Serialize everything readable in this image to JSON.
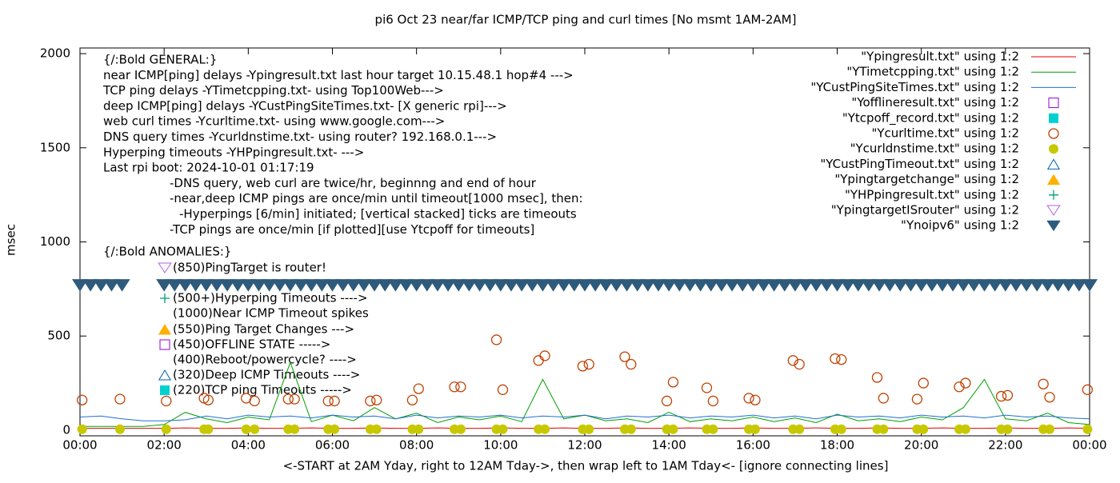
{
  "chart_data": {
    "type": "line",
    "title": "pi6 Oct 23  near/far ICMP/TCP ping and curl times [No msmt 1AM-2AM]",
    "xlabel": "<-START at 2AM Yday, right to 12AM Tday->, then wrap left to 1AM Tday<- [ignore connecting lines]",
    "ylabel": "msec",
    "xlim": [
      0,
      24
    ],
    "ylim": [
      -30,
      2030
    ],
    "xticks": [
      {
        "value": 0,
        "label": "00:00"
      },
      {
        "value": 2,
        "label": "02:00"
      },
      {
        "value": 4,
        "label": "04:00"
      },
      {
        "value": 6,
        "label": "06:00"
      },
      {
        "value": 8,
        "label": "08:00"
      },
      {
        "value": 10,
        "label": "10:00"
      },
      {
        "value": 12,
        "label": "12:00"
      },
      {
        "value": 14,
        "label": "14:00"
      },
      {
        "value": 16,
        "label": "16:00"
      },
      {
        "value": 18,
        "label": "18:00"
      },
      {
        "value": 20,
        "label": "20:00"
      },
      {
        "value": 22,
        "label": "22:00"
      },
      {
        "value": 24,
        "label": "00:00"
      }
    ],
    "yticks": [
      0,
      500,
      1000,
      1500,
      2000
    ],
    "notes": [
      "{/:Bold GENERAL:}",
      "near ICMP[ping] delays -Ypingresult.txt last hour target 10.15.48.1 hop#4 --->",
      "TCP ping delays -YTimetcpping.txt- using Top100Web--->",
      "deep ICMP[ping] delays -YCustPingSiteTimes.txt- [X generic rpi]--->",
      "web curl times -Ycurltime.txt- using www.google.com--->",
      "DNS query times -Ycurldnstime.txt- using router? 192.168.0.1--->",
      "Hyperping timeouts -YHPpingresult.txt- --->",
      "Last rpi boot: 2024-10-01 01:17:19",
      "-DNS query, web curl are twice/hr, beginnng and end of hour",
      "-near,deep ICMP pings are once/min until timeout[1000 msec], then:",
      "-Hyperpings [6/min] initiated; [vertical stacked] ticks are timeouts",
      "-TCP pings are once/min [if plotted][use Ytcpoff for timeouts]",
      "{/:Bold ANOMALIES:}"
    ],
    "anomalies": [
      "(850)PingTarget is router!",
      "(500+)Hyperping Timeouts ---->",
      "(1000)Near ICMP Timeout spikes",
      "(550)Ping Target Changes --->",
      "(450)OFFLINE STATE ----->",
      "(400)Reboot/powercycle? ---->",
      "(320)Deep ICMP Timeouts ---->",
      "(220)TCP ping Timeouts ----->"
    ],
    "series": [
      {
        "name": "\"Ypingresult.txt\" using 1:2",
        "color": "#e00000",
        "marker": "line",
        "x": [
          0,
          0.5,
          1,
          1.5,
          2,
          2.5,
          3,
          3.5,
          4,
          4.5,
          5,
          5.5,
          6,
          6.5,
          7,
          7.5,
          8,
          8.5,
          9,
          9.5,
          10,
          10.5,
          11,
          11.5,
          12,
          12.5,
          13,
          13.5,
          14,
          14.5,
          15,
          15.5,
          16,
          16.5,
          17,
          17.5,
          18,
          18.5,
          19,
          19.5,
          20,
          20.5,
          21,
          21.5,
          22,
          22.5,
          23,
          23.5,
          24
        ],
        "values": [
          10,
          10,
          10,
          10,
          10,
          12,
          10,
          10,
          12,
          10,
          10,
          12,
          10,
          10,
          12,
          10,
          10,
          12,
          10,
          10,
          12,
          10,
          10,
          12,
          10,
          10,
          12,
          10,
          10,
          12,
          10,
          10,
          12,
          10,
          10,
          12,
          10,
          10,
          12,
          10,
          10,
          12,
          10,
          10,
          12,
          10,
          10,
          12,
          10
        ]
      },
      {
        "name": "\"YTimetcpping.txt\" using 1:2",
        "color": "#00a000",
        "marker": "line",
        "x": [
          0,
          0.5,
          1,
          1.5,
          2,
          2.5,
          3,
          3.5,
          4,
          4.5,
          5,
          5.5,
          6,
          6.5,
          7,
          7.5,
          8,
          8.5,
          9,
          9.5,
          10,
          10.5,
          11,
          11.5,
          12,
          12.5,
          13,
          13.5,
          14,
          14.5,
          15,
          15.5,
          16,
          16.5,
          17,
          17.5,
          18,
          18.5,
          19,
          19.5,
          20,
          20.5,
          21,
          21.5,
          22,
          22.5,
          23,
          23.5,
          24
        ],
        "values": [
          20,
          20,
          20,
          20,
          30,
          95,
          60,
          40,
          70,
          55,
          360,
          45,
          80,
          50,
          120,
          60,
          90,
          40,
          70,
          55,
          75,
          45,
          270,
          60,
          80,
          50,
          60,
          40,
          95,
          45,
          60,
          50,
          70,
          45,
          65,
          40,
          85,
          50,
          60,
          45,
          70,
          55,
          120,
          270,
          60,
          50,
          90,
          40,
          30
        ]
      },
      {
        "name": "\"YCustPingSiteTimes.txt\" using 1:2",
        "color": "#1f6fd0",
        "marker": "line",
        "x": [
          0,
          0.5,
          1,
          1.5,
          2,
          2.5,
          3,
          3.5,
          4,
          4.5,
          5,
          5.5,
          6,
          6.5,
          7,
          7.5,
          8,
          8.5,
          9,
          9.5,
          10,
          10.5,
          11,
          11.5,
          12,
          12.5,
          13,
          13.5,
          14,
          14.5,
          15,
          15.5,
          16,
          16.5,
          17,
          17.5,
          18,
          18.5,
          19,
          19.5,
          20,
          20.5,
          21,
          21.5,
          22,
          22.5,
          23,
          23.5,
          24
        ],
        "values": [
          70,
          75,
          60,
          50,
          50,
          55,
          75,
          60,
          80,
          70,
          75,
          65,
          80,
          70,
          75,
          60,
          80,
          65,
          75,
          70,
          80,
          65,
          75,
          70,
          80,
          60,
          75,
          70,
          80,
          65,
          75,
          70,
          80,
          65,
          75,
          60,
          80,
          70,
          75,
          65,
          80,
          70,
          75,
          65,
          80,
          70,
          75,
          65,
          60
        ]
      },
      {
        "name": "\"Yofflineresult.txt\" using 1:2",
        "color": "#9400d3",
        "marker": "square-open",
        "x": [],
        "values": []
      },
      {
        "name": "\"Ytcpoff_record.txt\" using 1:2",
        "color": "#00d0d0",
        "marker": "square",
        "x": [],
        "values": []
      },
      {
        "name": "\"Ycurltime.txt\" using 1:2",
        "color": "#c04000",
        "marker": "circle-open",
        "x": [
          0.05,
          0.95,
          2.05,
          2.95,
          3.05,
          3.95,
          4.15,
          4.95,
          5.1,
          5.9,
          6.05,
          6.9,
          7.05,
          7.9,
          8.05,
          8.9,
          9.05,
          9.9,
          10.05,
          10.9,
          11.05,
          11.95,
          12.1,
          12.95,
          13.1,
          13.95,
          14.1,
          14.9,
          15.05,
          15.9,
          16.05,
          16.95,
          17.1,
          17.95,
          18.1,
          18.95,
          19.1,
          19.9,
          20.05,
          20.9,
          21.05,
          21.9,
          22.05,
          22.9,
          23.05,
          23.95
        ],
        "values": [
          160,
          165,
          155,
          170,
          160,
          170,
          155,
          165,
          165,
          155,
          155,
          155,
          160,
          160,
          220,
          230,
          230,
          480,
          215,
          370,
          395,
          340,
          350,
          390,
          350,
          155,
          255,
          225,
          155,
          170,
          160,
          370,
          350,
          380,
          375,
          280,
          170,
          165,
          250,
          230,
          250,
          180,
          185,
          245,
          175,
          215
        ]
      },
      {
        "name": "\"Ycurldnstime.txt\" using 1:2",
        "color": "#c8c800",
        "marker": "circle",
        "x": [
          0.05,
          0.95,
          2.05,
          2.95,
          3.05,
          3.95,
          4.15,
          4.95,
          5.1,
          5.9,
          6.05,
          6.9,
          7.05,
          7.9,
          8.05,
          8.9,
          9.05,
          9.9,
          10.05,
          10.9,
          11.05,
          11.95,
          12.1,
          12.95,
          13.1,
          13.95,
          14.1,
          14.9,
          15.05,
          15.9,
          16.05,
          16.95,
          17.1,
          17.95,
          18.1,
          18.95,
          19.1,
          19.9,
          20.05,
          20.9,
          21.05,
          21.9,
          22.05,
          22.9,
          23.05,
          23.95
        ],
        "values": [
          5,
          5,
          5,
          5,
          5,
          5,
          5,
          5,
          5,
          5,
          5,
          5,
          5,
          5,
          5,
          5,
          5,
          5,
          5,
          5,
          5,
          5,
          5,
          5,
          5,
          5,
          5,
          5,
          5,
          5,
          5,
          5,
          5,
          5,
          5,
          5,
          5,
          5,
          5,
          5,
          5,
          5,
          5,
          5,
          5,
          5
        ]
      },
      {
        "name": "\"YCustPingTimeout.txt\" using 1:2",
        "color": "#0060ad",
        "marker": "triangle-open",
        "x": [],
        "values": []
      },
      {
        "name": "\"Ypingtargetchange\" using 1:2",
        "color": "#ffb000",
        "marker": "triangle",
        "x": [],
        "values": []
      },
      {
        "name": "\"YHPpingresult.txt\" using 1:2",
        "color": "#009e73",
        "marker": "plus",
        "x": [],
        "values": []
      },
      {
        "name": "\"YpingtargetISrouter\" using 1:2",
        "color": "#b060e0",
        "marker": "triangle-down-open",
        "x": [],
        "values": []
      },
      {
        "name": "\"Ynoipv6\" using 1:2",
        "color": "#2e5b7b",
        "marker": "triangle-down",
        "x": [
          0,
          0.25,
          0.5,
          0.75,
          1,
          2,
          2.25,
          2.5,
          2.75,
          3,
          3.25,
          3.5,
          3.75,
          4,
          4.25,
          4.5,
          4.75,
          5,
          5.25,
          5.5,
          5.75,
          6,
          6.25,
          6.5,
          6.75,
          7,
          7.25,
          7.5,
          7.75,
          8,
          8.25,
          8.5,
          8.75,
          9,
          9.25,
          9.5,
          9.75,
          10,
          10.25,
          10.5,
          10.75,
          11,
          11.25,
          11.5,
          11.75,
          12,
          12.25,
          12.5,
          12.75,
          13,
          13.25,
          13.5,
          13.75,
          14,
          14.25,
          14.5,
          14.75,
          15,
          15.25,
          15.5,
          15.75,
          16,
          16.25,
          16.5,
          16.75,
          17,
          17.25,
          17.5,
          17.75,
          18,
          18.25,
          18.5,
          18.75,
          19,
          19.25,
          19.5,
          19.75,
          20,
          20.25,
          20.5,
          20.75,
          21,
          21.25,
          21.5,
          21.75,
          22,
          22.25,
          22.5,
          22.75,
          23,
          23.25,
          23.5,
          23.75,
          24
        ],
        "values": [
          770,
          770,
          770,
          770,
          770,
          770,
          770,
          770,
          770,
          770,
          770,
          770,
          770,
          770,
          770,
          770,
          770,
          770,
          770,
          770,
          770,
          770,
          770,
          770,
          770,
          770,
          770,
          770,
          770,
          770,
          770,
          770,
          770,
          770,
          770,
          770,
          770,
          770,
          770,
          770,
          770,
          770,
          770,
          770,
          770,
          770,
          770,
          770,
          770,
          770,
          770,
          770,
          770,
          770,
          770,
          770,
          770,
          770,
          770,
          770,
          770,
          770,
          770,
          770,
          770,
          770,
          770,
          770,
          770,
          770,
          770,
          770,
          770,
          770,
          770,
          770,
          770,
          770,
          770,
          770,
          770,
          770,
          770,
          770,
          770,
          770,
          770,
          770,
          770,
          770,
          770,
          770,
          770,
          770
        ]
      }
    ]
  }
}
